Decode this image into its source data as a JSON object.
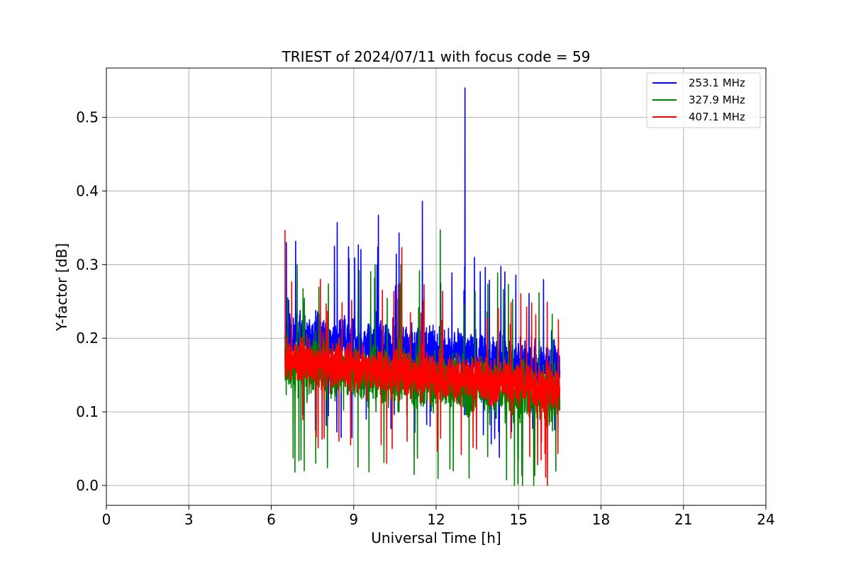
{
  "chart_data": {
    "type": "line",
    "title": "TRIEST of 2024/07/11 with focus code = 59",
    "xlabel": "Universal Time [h]",
    "ylabel": "Y-factor [dB]",
    "xlim": [
      0,
      24
    ],
    "ylim": [
      -0.027,
      0.567
    ],
    "xticks": [
      0,
      3,
      6,
      9,
      12,
      15,
      18,
      21,
      24
    ],
    "yticks": [
      0.0,
      0.1,
      0.2,
      0.3,
      0.4,
      0.5
    ],
    "xtick_labels": [
      "0",
      "3",
      "6",
      "9",
      "12",
      "15",
      "18",
      "21",
      "24"
    ],
    "ytick_labels": [
      "0.0",
      "0.1",
      "0.2",
      "0.3",
      "0.4",
      "0.5"
    ],
    "grid": true,
    "legend_position": "top-right",
    "data_start": 6.5,
    "data_end": 16.5,
    "series": [
      {
        "name": "253.1 MHz",
        "color": "#0000ff",
        "mean_start": 0.205,
        "mean_end": 0.16,
        "spread": 0.06,
        "spike_max_base": 0.34,
        "floor": 0.0,
        "peaks": [
          {
            "x": 6.55,
            "y": 0.33
          },
          {
            "x": 8.4,
            "y": 0.357
          },
          {
            "x": 9.9,
            "y": 0.367
          },
          {
            "x": 10.65,
            "y": 0.343
          },
          {
            "x": 11.5,
            "y": 0.386
          },
          {
            "x": 13.05,
            "y": 0.54
          },
          {
            "x": 14.5,
            "y": 0.29
          },
          {
            "x": 16.2,
            "y": 0.21
          }
        ]
      },
      {
        "name": "327.9 MHz",
        "color": "#008000",
        "mean_start": 0.165,
        "mean_end": 0.12,
        "spread": 0.07,
        "spike_max_base": 0.3,
        "floor": 0.0,
        "peaks": [
          {
            "x": 6.6,
            "y": 0.255
          },
          {
            "x": 7.2,
            "y": 0.02
          },
          {
            "x": 12.15,
            "y": 0.347
          },
          {
            "x": 13.2,
            "y": 0.01
          },
          {
            "x": 15.55,
            "y": 0.0
          },
          {
            "x": 15.2,
            "y": 0.17
          }
        ]
      },
      {
        "name": "407.1 MHz",
        "color": "#ff0000",
        "mean_start": 0.17,
        "mean_end": 0.13,
        "spread": 0.055,
        "spike_max_base": 0.28,
        "floor": 0.0,
        "peaks": [
          {
            "x": 6.48,
            "y": 0.347
          },
          {
            "x": 10.2,
            "y": 0.03
          },
          {
            "x": 10.75,
            "y": 0.323
          },
          {
            "x": 16.05,
            "y": 0.0
          },
          {
            "x": 16.45,
            "y": 0.225
          }
        ]
      }
    ]
  }
}
